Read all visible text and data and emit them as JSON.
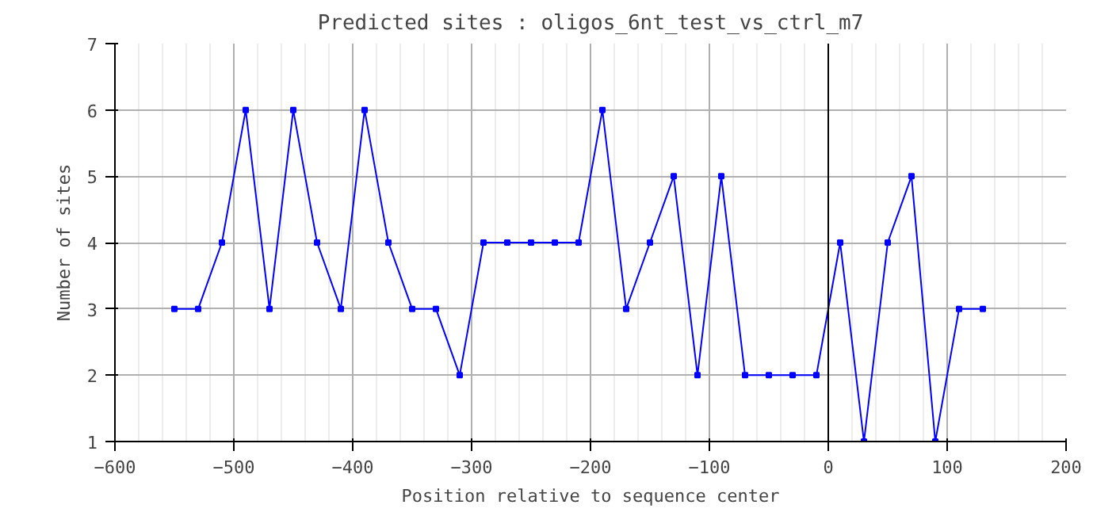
{
  "chart_data": {
    "type": "line",
    "title": "Predicted sites : oligos_6nt_test_vs_ctrl_m7",
    "xlabel": "Position relative to sequence center",
    "ylabel": "Number of sites",
    "x": [
      -550,
      -530,
      -510,
      -490,
      -470,
      -450,
      -430,
      -410,
      -390,
      -370,
      -350,
      -330,
      -310,
      -290,
      -270,
      -250,
      -230,
      -210,
      -190,
      -170,
      -150,
      -130,
      -110,
      -90,
      -70,
      -50,
      -30,
      -10,
      10,
      30,
      50,
      70,
      90,
      110,
      130
    ],
    "series": [
      {
        "color": "#0000ff",
        "values": [
          3,
          3,
          4,
          6,
          3,
          6,
          4,
          3,
          6,
          4,
          3,
          3,
          2,
          4,
          4,
          4,
          4,
          4,
          6,
          3,
          4,
          5,
          2,
          5,
          2,
          2,
          2,
          2,
          4,
          1,
          4,
          5,
          1,
          3,
          3
        ]
      }
    ],
    "xlim": [
      -600,
      200
    ],
    "xticks": [
      -600,
      -500,
      -400,
      -300,
      -200,
      -100,
      0,
      100,
      200
    ],
    "ylim": [
      1,
      7
    ],
    "yticks": [
      1,
      2,
      3,
      4,
      5,
      6,
      7
    ],
    "ref_lines": [
      {
        "axis": "x",
        "value": 0,
        "color": "#000000"
      }
    ],
    "grid": true,
    "marker": "square",
    "line_style": "solid"
  }
}
